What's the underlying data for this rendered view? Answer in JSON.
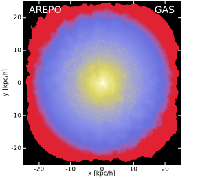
{
  "chart_data": {
    "type": "image",
    "annotations": [
      "AREPO",
      "GAS"
    ],
    "xlabel": "x [kpc/h]",
    "ylabel": "y [kpc/h]",
    "xlim": [
      -25,
      25
    ],
    "ylim": [
      -25,
      25
    ],
    "xticks": [
      -20,
      -10,
      0,
      10,
      20
    ],
    "yticks": [
      -20,
      -10,
      0,
      10,
      20
    ]
  }
}
